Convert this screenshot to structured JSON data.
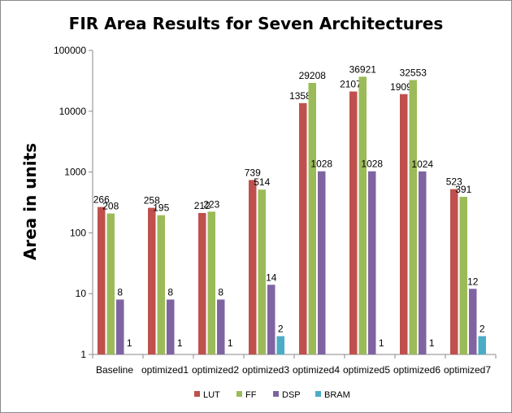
{
  "chart_data": {
    "type": "bar",
    "title": "FIR Area Results for Seven Architectures",
    "xlabel": "",
    "ylabel": "Area in units",
    "yscale": "log",
    "ylim": [
      1,
      100000
    ],
    "yticks": [
      "1",
      "10",
      "100",
      "1000",
      "10000",
      "100000"
    ],
    "grid": false,
    "legend_position": "bottom",
    "categories": [
      "Baseline",
      "optimized1",
      "optimized2",
      "optimized3",
      "optimized4",
      "optimized5",
      "optimized6",
      "optimized7"
    ],
    "series": [
      {
        "name": "LUT",
        "color": "#c0504d",
        "values": [
          266,
          258,
          212,
          739,
          13589,
          21075,
          19098,
          523
        ],
        "labels": [
          "266",
          "258",
          "212",
          "739",
          "13589",
          "21075",
          "19098",
          "523"
        ]
      },
      {
        "name": "FF",
        "color": "#9bbb59",
        "values": [
          208,
          195,
          223,
          514,
          29208,
          36921,
          32553,
          391
        ],
        "labels": [
          "208",
          "195",
          "223",
          "514",
          "29208",
          "36921",
          "32553",
          "391"
        ]
      },
      {
        "name": "DSP",
        "color": "#8064a2",
        "values": [
          8,
          8,
          8,
          14,
          1028,
          1028,
          1024,
          12
        ],
        "labels": [
          "8",
          "8",
          "8",
          "14",
          "1028",
          "1028",
          "1024",
          "12"
        ]
      },
      {
        "name": "BRAM",
        "color": "#4bacc6",
        "values": [
          1,
          1,
          1,
          2,
          null,
          1,
          1,
          2
        ],
        "labels": [
          "1",
          "1",
          "1",
          "2",
          "",
          "1",
          "1",
          "2"
        ]
      }
    ]
  }
}
